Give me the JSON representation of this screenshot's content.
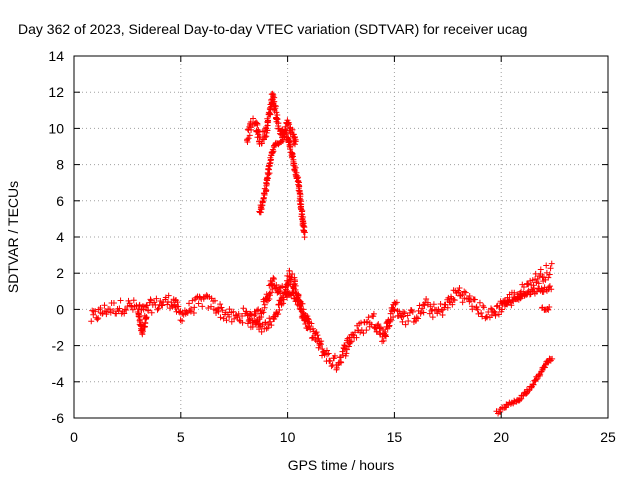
{
  "chart_data": {
    "type": "scatter",
    "title": "Day 362 of 2023, Sidereal Day-to-day VTEC variation (SDTVAR) for receiver ucag",
    "xlabel": "GPS time / hours",
    "ylabel": "SDTVAR / TECUs",
    "xlim": [
      0,
      25
    ],
    "ylim": [
      -6,
      14
    ],
    "xticks": [
      0,
      5,
      10,
      15,
      20,
      25
    ],
    "yticks": [
      -6,
      -4,
      -2,
      0,
      2,
      4,
      6,
      8,
      10,
      12,
      14
    ],
    "grid": true,
    "marker": "+",
    "color": "#ff0000",
    "series": [
      {
        "name": "main-track",
        "x": [
          0.8,
          1.5,
          2.5,
          3.0,
          3.3,
          3.6,
          4.0,
          4.6,
          5.0,
          5.5,
          6.0,
          6.5,
          7.0,
          7.5,
          8.0,
          8.3,
          8.7,
          9.0,
          9.3,
          9.6,
          9.9,
          10.1,
          10.3,
          10.5,
          10.8,
          11.0,
          11.3,
          11.6,
          12.0,
          12.3,
          12.6,
          13.0,
          13.5,
          14.0,
          14.5,
          15.0,
          15.5,
          16.0,
          16.5,
          17.0,
          17.5,
          18.0,
          18.5,
          19.0,
          19.5,
          20.0,
          20.5,
          21.0,
          21.5,
          22.0,
          22.4
        ],
        "y": [
          -0.5,
          0.0,
          0.2,
          0.1,
          -0.2,
          0.2,
          0.3,
          0.5,
          -0.3,
          0.1,
          0.5,
          0.3,
          -0.2,
          -0.5,
          -0.3,
          -0.7,
          -0.2,
          0.5,
          1.5,
          0.8,
          1.2,
          2.0,
          1.5,
          0.5,
          -0.5,
          -1.0,
          -1.5,
          -2.2,
          -2.8,
          -3.0,
          -2.4,
          -1.5,
          -1.0,
          -0.5,
          -1.5,
          0.2,
          -0.5,
          -0.3,
          0.2,
          -0.2,
          0.3,
          1.0,
          0.5,
          0.0,
          -0.3,
          0.2,
          0.6,
          1.0,
          1.5,
          2.0,
          2.2
        ],
        "spread": 0.4
      },
      {
        "name": "lower-branch",
        "x": [
          8.2,
          8.8,
          9.3,
          9.8,
          10.2,
          10.6,
          11.0
        ],
        "y": [
          -0.3,
          -1.0,
          -0.6,
          0.6,
          1.0,
          0.2,
          -0.8
        ],
        "spread": 0.25
      },
      {
        "name": "dip-3h",
        "x": [
          3.0,
          3.1,
          3.2,
          3.3,
          3.4
        ],
        "y": [
          -0.2,
          -0.8,
          -1.3,
          -0.9,
          -0.3
        ],
        "spread": 0.15
      },
      {
        "name": "end-cluster-20-22h",
        "x": [
          20.0,
          20.5,
          21.0,
          21.5,
          22.0,
          22.4
        ],
        "y": [
          0.3,
          0.5,
          0.8,
          1.0,
          1.1,
          1.2
        ],
        "spread": 0.15
      },
      {
        "name": "end-zero-22h",
        "x": [
          21.9,
          22.1,
          22.3
        ],
        "y": [
          0.1,
          0.0,
          0.1
        ],
        "spread": 0.08
      },
      {
        "name": "upper-arc",
        "x": [
          8.1,
          8.3,
          8.5,
          8.7,
          9.0,
          9.2,
          9.3,
          9.4,
          9.6,
          9.8,
          10.0,
          10.2,
          10.4
        ],
        "y": [
          9.5,
          10.2,
          10.3,
          9.3,
          9.8,
          11.2,
          11.8,
          11.2,
          10.0,
          9.5,
          10.3,
          9.8,
          9.0
        ],
        "spread": 0.3
      },
      {
        "name": "upper-left-descent",
        "x": [
          8.7,
          8.8,
          8.9,
          9.0,
          9.1,
          9.2,
          9.3,
          9.5,
          9.8
        ],
        "y": [
          5.3,
          5.8,
          6.3,
          6.8,
          7.5,
          8.2,
          8.8,
          9.2,
          9.5
        ],
        "spread": 0.2
      },
      {
        "name": "upper-right-descent",
        "x": [
          9.8,
          10.0,
          10.2,
          10.4,
          10.5,
          10.6,
          10.7,
          10.8
        ],
        "y": [
          9.8,
          9.6,
          8.5,
          7.5,
          7.0,
          6.0,
          5.0,
          4.0
        ],
        "spread": 0.2
      },
      {
        "name": "late-descent",
        "x": [
          19.8,
          20.3,
          20.8,
          21.3,
          21.8,
          22.1,
          22.4
        ],
        "y": [
          -5.7,
          -5.3,
          -5.0,
          -4.4,
          -3.6,
          -3.0,
          -2.6
        ],
        "spread": 0.1
      }
    ]
  }
}
